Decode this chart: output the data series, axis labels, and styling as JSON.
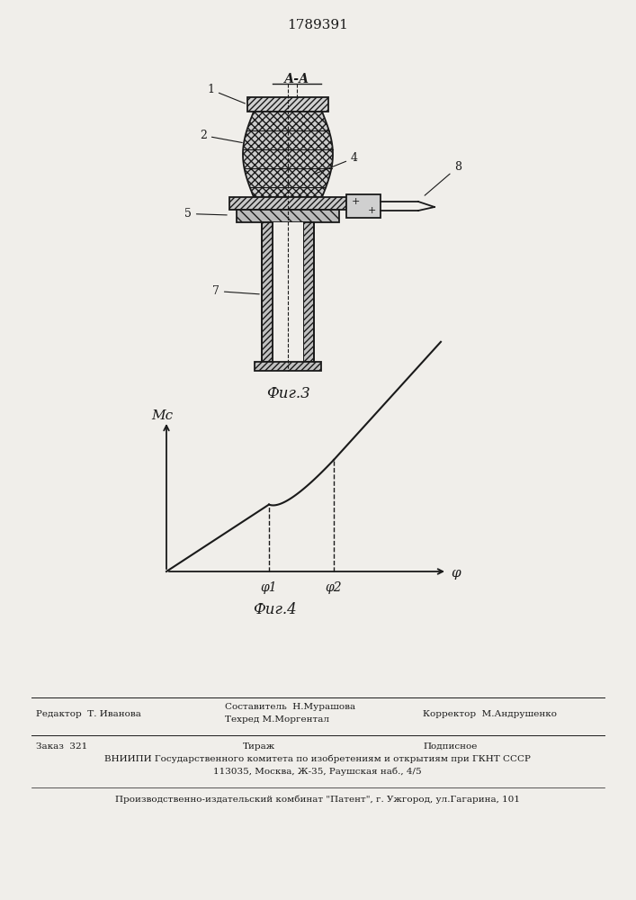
{
  "patent_number": "1789391",
  "fig3_caption": "Фиг.3",
  "fig4_caption": "Фиг.4",
  "section_label": "А-А",
  "graph_ylabel": "Мс",
  "graph_xlabel": "φ",
  "graph_phi1_label": "φ1",
  "graph_phi2_label": "φ2",
  "footer_line1_left": "Редактор  Т. Иванова",
  "footer_line1_center_top": "Составитель  Н.Мурашова",
  "footer_line1_center_bot": "Техред М.Моргентал",
  "footer_line1_right": "Корректор  М.Андрушенко",
  "footer_line2_left": "Заказ  321",
  "footer_line2_center": "Тираж",
  "footer_line2_right": "Подписное",
  "footer_line3": "ВНИИПИ Государственного комитета по изобретениям и открытиям при ГКНТ СССР",
  "footer_line4": "113035, Москва, Ж-35, Раушская наб., 4/5",
  "footer_line5": "Производственно-издательский комбинат \"Патент\", г. Ужгород, ул.Гагарина, 101",
  "bg_color": "#f0eeea",
  "line_color": "#1a1a1a"
}
